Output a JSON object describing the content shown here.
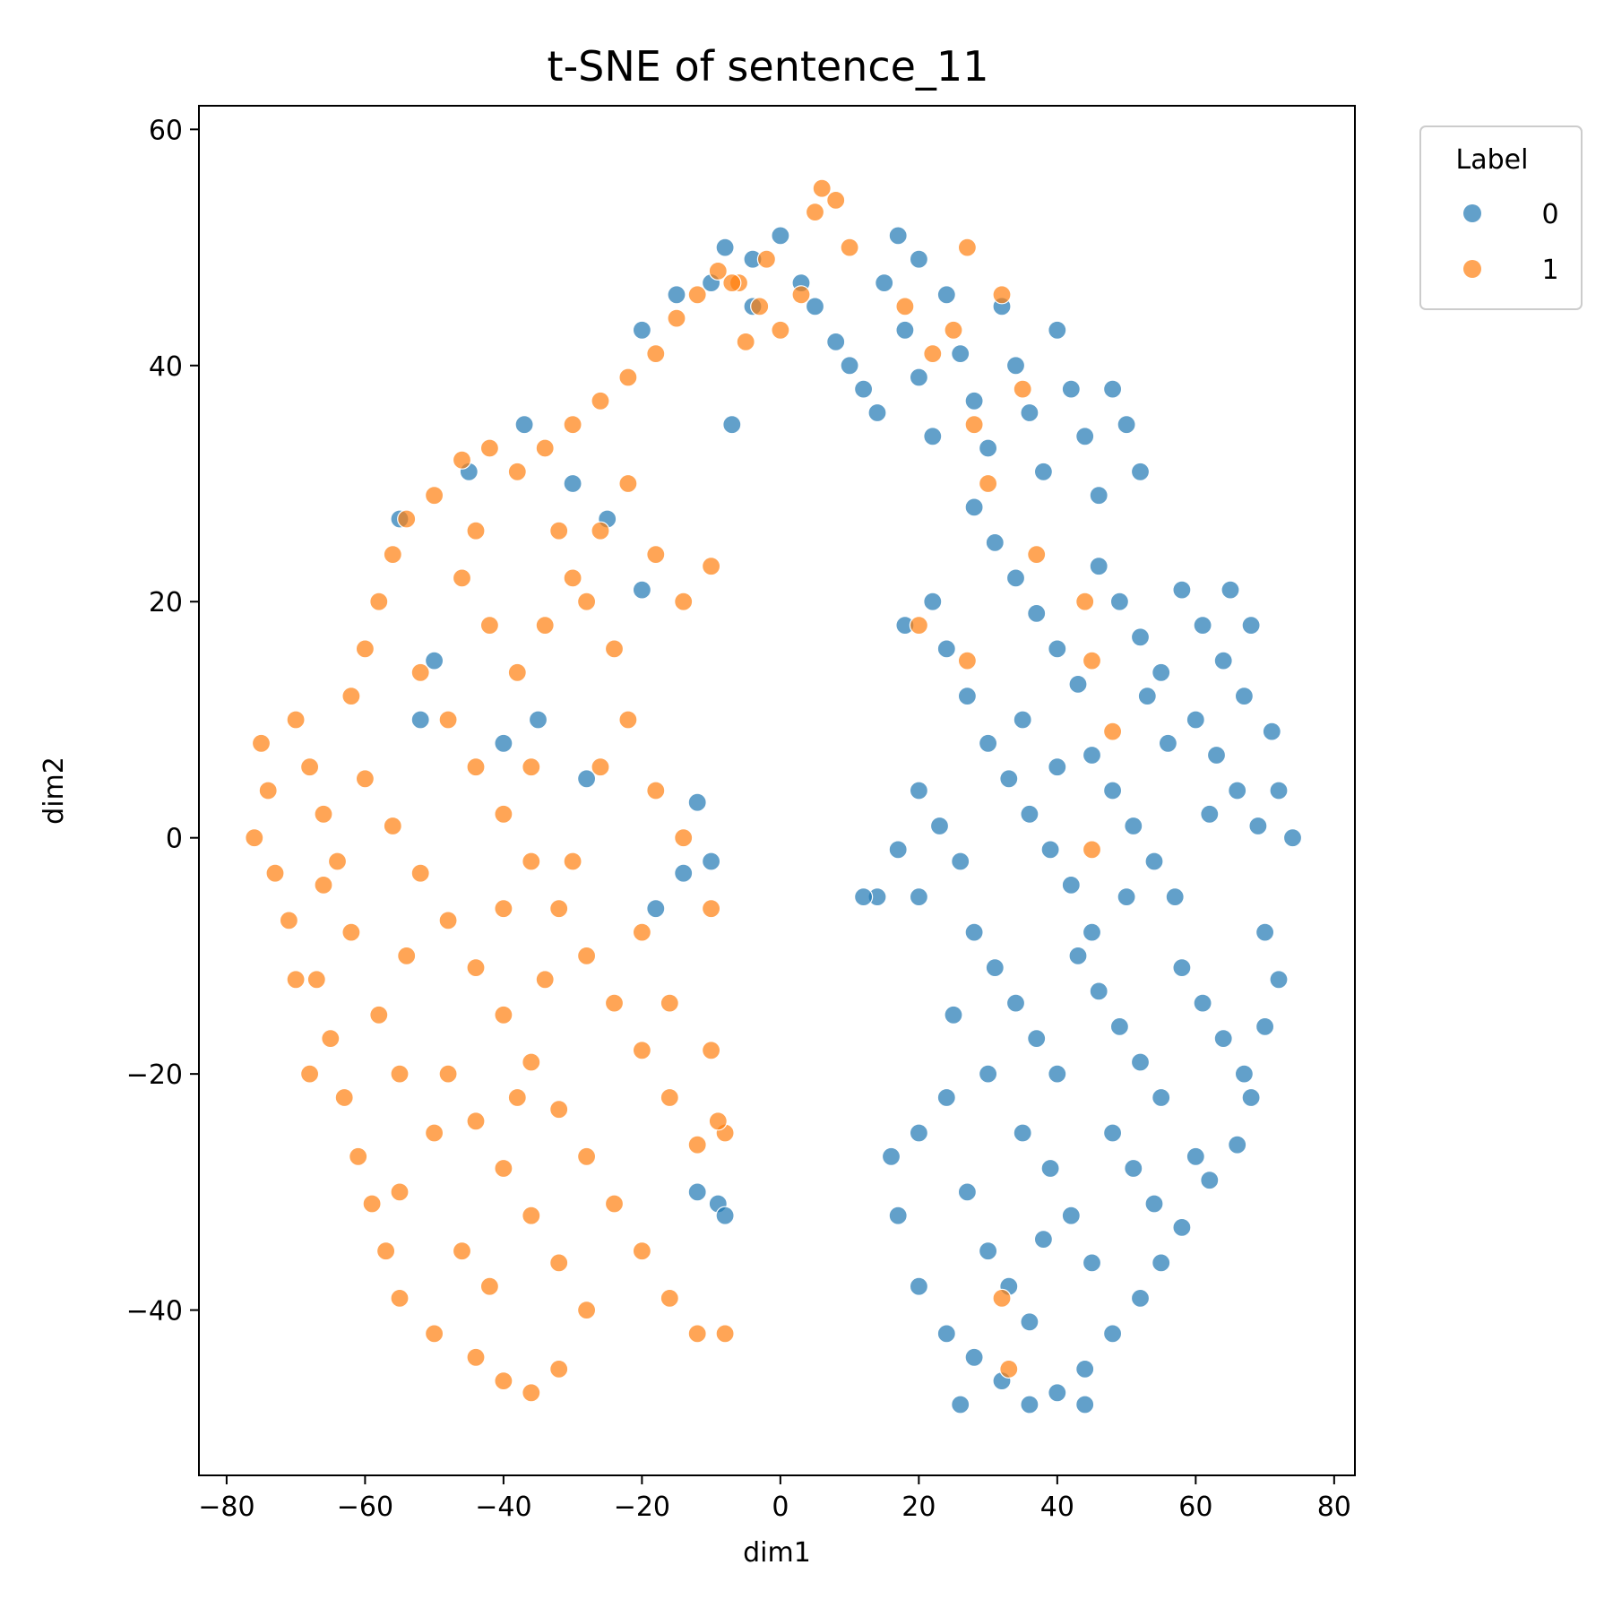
{
  "chart_data": {
    "type": "scatter",
    "title": "t-SNE of sentence_11",
    "xlabel": "dim1",
    "ylabel": "dim2",
    "xlim": [
      -84,
      83
    ],
    "ylim": [
      -54,
      62
    ],
    "xticks": [
      -80,
      -60,
      -40,
      -20,
      0,
      20,
      40,
      60,
      80
    ],
    "yticks": [
      -40,
      -20,
      0,
      20,
      40,
      60
    ],
    "xtick_labels": [
      "−80",
      "−60",
      "−40",
      "−20",
      "0",
      "20",
      "40",
      "60",
      "80"
    ],
    "ytick_labels": [
      "−40",
      "−20",
      "0",
      "20",
      "40",
      "60"
    ],
    "grid": false,
    "legend": {
      "title": "Label",
      "placement": "upper right, outside plot"
    },
    "series": [
      {
        "name": "0",
        "color": "#1f77b4",
        "points": [
          [
            -8,
            50
          ],
          [
            -4,
            49
          ],
          [
            0,
            51
          ],
          [
            3,
            47
          ],
          [
            5,
            45
          ],
          [
            8,
            42
          ],
          [
            10,
            40
          ],
          [
            12,
            38
          ],
          [
            14,
            36
          ],
          [
            15,
            47
          ],
          [
            17,
            51
          ],
          [
            18,
            43
          ],
          [
            20,
            39
          ],
          [
            22,
            34
          ],
          [
            20,
            49
          ],
          [
            24,
            46
          ],
          [
            26,
            41
          ],
          [
            28,
            37
          ],
          [
            30,
            33
          ],
          [
            32,
            45
          ],
          [
            34,
            40
          ],
          [
            36,
            36
          ],
          [
            38,
            31
          ],
          [
            40,
            43
          ],
          [
            42,
            38
          ],
          [
            44,
            34
          ],
          [
            46,
            29
          ],
          [
            48,
            38
          ],
          [
            50,
            35
          ],
          [
            52,
            31
          ],
          [
            28,
            28
          ],
          [
            31,
            25
          ],
          [
            34,
            22
          ],
          [
            37,
            19
          ],
          [
            40,
            16
          ],
          [
            43,
            13
          ],
          [
            46,
            23
          ],
          [
            49,
            20
          ],
          [
            52,
            17
          ],
          [
            55,
            14
          ],
          [
            58,
            21
          ],
          [
            61,
            18
          ],
          [
            64,
            15
          ],
          [
            67,
            12
          ],
          [
            60,
            10
          ],
          [
            63,
            7
          ],
          [
            66,
            4
          ],
          [
            69,
            1
          ],
          [
            72,
            4
          ],
          [
            74,
            0
          ],
          [
            22,
            20
          ],
          [
            24,
            16
          ],
          [
            18,
            18
          ],
          [
            27,
            12
          ],
          [
            30,
            8
          ],
          [
            33,
            5
          ],
          [
            36,
            2
          ],
          [
            39,
            -1
          ],
          [
            42,
            -4
          ],
          [
            45,
            7
          ],
          [
            48,
            4
          ],
          [
            51,
            1
          ],
          [
            54,
            -2
          ],
          [
            57,
            -5
          ],
          [
            20,
            4
          ],
          [
            23,
            1
          ],
          [
            26,
            -2
          ],
          [
            17,
            -1
          ],
          [
            20,
            -5
          ],
          [
            14,
            -5
          ],
          [
            12,
            -5
          ],
          [
            28,
            -8
          ],
          [
            31,
            -11
          ],
          [
            34,
            -14
          ],
          [
            37,
            -17
          ],
          [
            40,
            -20
          ],
          [
            43,
            -10
          ],
          [
            46,
            -13
          ],
          [
            49,
            -16
          ],
          [
            52,
            -19
          ],
          [
            55,
            -22
          ],
          [
            58,
            -11
          ],
          [
            61,
            -14
          ],
          [
            64,
            -17
          ],
          [
            67,
            -20
          ],
          [
            70,
            -8
          ],
          [
            72,
            -12
          ],
          [
            70,
            -16
          ],
          [
            68,
            -22
          ],
          [
            66,
            -26
          ],
          [
            62,
            -29
          ],
          [
            58,
            -33
          ],
          [
            55,
            -36
          ],
          [
            52,
            -39
          ],
          [
            48,
            -42
          ],
          [
            44,
            -45
          ],
          [
            40,
            -47
          ],
          [
            36,
            -48
          ],
          [
            32,
            -46
          ],
          [
            28,
            -44
          ],
          [
            24,
            -42
          ],
          [
            20,
            -38
          ],
          [
            17,
            -32
          ],
          [
            16,
            -27
          ],
          [
            20,
            -25
          ],
          [
            24,
            -22
          ],
          [
            27,
            -30
          ],
          [
            30,
            -35
          ],
          [
            33,
            -38
          ],
          [
            36,
            -41
          ],
          [
            39,
            -28
          ],
          [
            42,
            -32
          ],
          [
            45,
            -36
          ],
          [
            48,
            -25
          ],
          [
            51,
            -28
          ],
          [
            54,
            -31
          ],
          [
            26,
            -48
          ],
          [
            44,
            -48
          ],
          [
            60,
            -27
          ],
          [
            65,
            21
          ],
          [
            68,
            18
          ],
          [
            71,
            9
          ],
          [
            62,
            2
          ],
          [
            35,
            -25
          ],
          [
            38,
            -34
          ],
          [
            30,
            -20
          ],
          [
            25,
            -15
          ],
          [
            45,
            -8
          ],
          [
            50,
            -5
          ],
          [
            56,
            8
          ],
          [
            53,
            12
          ],
          [
            40,
            6
          ],
          [
            35,
            10
          ],
          [
            -12,
            3
          ],
          [
            -10,
            -2
          ],
          [
            -14,
            -3
          ],
          [
            -18,
            -6
          ],
          [
            -20,
            21
          ],
          [
            -25,
            27
          ],
          [
            -30,
            30
          ],
          [
            -37,
            35
          ],
          [
            -45,
            31
          ],
          [
            -55,
            27
          ],
          [
            -50,
            15
          ],
          [
            -52,
            10
          ],
          [
            -40,
            8
          ],
          [
            -35,
            10
          ],
          [
            -12,
            -30
          ],
          [
            -9,
            -31
          ],
          [
            -8,
            -32
          ],
          [
            -28,
            5
          ],
          [
            -7,
            35
          ],
          [
            -4,
            45
          ],
          [
            -10,
            47
          ],
          [
            -15,
            46
          ],
          [
            -20,
            43
          ]
        ]
      },
      {
        "name": "1",
        "color": "#ff7f0e",
        "points": [
          [
            -75,
            8
          ],
          [
            -74,
            4
          ],
          [
            -76,
            0
          ],
          [
            -73,
            -3
          ],
          [
            -71,
            -7
          ],
          [
            -70,
            10
          ],
          [
            -68,
            6
          ],
          [
            -66,
            2
          ],
          [
            -64,
            -2
          ],
          [
            -67,
            -12
          ],
          [
            -65,
            -17
          ],
          [
            -63,
            -22
          ],
          [
            -61,
            -27
          ],
          [
            -59,
            -31
          ],
          [
            -57,
            -35
          ],
          [
            -55,
            -39
          ],
          [
            -62,
            12
          ],
          [
            -60,
            16
          ],
          [
            -58,
            20
          ],
          [
            -56,
            24
          ],
          [
            -54,
            27
          ],
          [
            -50,
            29
          ],
          [
            -46,
            32
          ],
          [
            -42,
            33
          ],
          [
            -38,
            31
          ],
          [
            -34,
            33
          ],
          [
            -30,
            35
          ],
          [
            -26,
            37
          ],
          [
            -22,
            39
          ],
          [
            -18,
            41
          ],
          [
            -15,
            44
          ],
          [
            -12,
            46
          ],
          [
            -9,
            48
          ],
          [
            -6,
            47
          ],
          [
            -3,
            45
          ],
          [
            0,
            43
          ],
          [
            -60,
            5
          ],
          [
            -56,
            1
          ],
          [
            -52,
            -3
          ],
          [
            -48,
            -7
          ],
          [
            -44,
            -11
          ],
          [
            -40,
            -15
          ],
          [
            -36,
            -19
          ],
          [
            -32,
            -23
          ],
          [
            -28,
            -27
          ],
          [
            -24,
            -31
          ],
          [
            -20,
            -35
          ],
          [
            -16,
            -39
          ],
          [
            -12,
            -42
          ],
          [
            -8,
            -42
          ],
          [
            -52,
            14
          ],
          [
            -48,
            10
          ],
          [
            -44,
            6
          ],
          [
            -40,
            2
          ],
          [
            -36,
            -2
          ],
          [
            -32,
            -6
          ],
          [
            -28,
            -10
          ],
          [
            -24,
            -14
          ],
          [
            -20,
            -18
          ],
          [
            -16,
            -22
          ],
          [
            -12,
            -26
          ],
          [
            -8,
            -25
          ],
          [
            -46,
            22
          ],
          [
            -42,
            18
          ],
          [
            -38,
            14
          ],
          [
            -34,
            18
          ],
          [
            -30,
            22
          ],
          [
            -26,
            26
          ],
          [
            -22,
            30
          ],
          [
            -18,
            24
          ],
          [
            -14,
            20
          ],
          [
            -10,
            23
          ],
          [
            -48,
            -20
          ],
          [
            -44,
            -24
          ],
          [
            -40,
            -28
          ],
          [
            -36,
            -32
          ],
          [
            -32,
            -36
          ],
          [
            -28,
            -40
          ],
          [
            -44,
            -44
          ],
          [
            -40,
            -46
          ],
          [
            -36,
            -47
          ],
          [
            -32,
            -45
          ],
          [
            -50,
            -42
          ],
          [
            -55,
            -30
          ],
          [
            -58,
            -15
          ],
          [
            -62,
            -8
          ],
          [
            -66,
            -4
          ],
          [
            -70,
            -12
          ],
          [
            -68,
            -20
          ],
          [
            -54,
            -10
          ],
          [
            -50,
            -25
          ],
          [
            -46,
            -35
          ],
          [
            -42,
            -38
          ],
          [
            -38,
            -22
          ],
          [
            -34,
            -12
          ],
          [
            -30,
            -2
          ],
          [
            -26,
            6
          ],
          [
            -22,
            10
          ],
          [
            -18,
            4
          ],
          [
            -14,
            0
          ],
          [
            -10,
            -6
          ],
          [
            -20,
            -8
          ],
          [
            -16,
            -14
          ],
          [
            -24,
            16
          ],
          [
            -28,
            20
          ],
          [
            -32,
            26
          ],
          [
            -36,
            6
          ],
          [
            -40,
            -6
          ],
          [
            -55,
            -20
          ],
          [
            -44,
            26
          ],
          [
            -10,
            -18
          ],
          [
            -9,
            -24
          ],
          [
            6,
            55
          ],
          [
            8,
            54
          ],
          [
            5,
            53
          ],
          [
            10,
            50
          ],
          [
            -2,
            49
          ],
          [
            3,
            46
          ],
          [
            -7,
            47
          ],
          [
            -5,
            42
          ],
          [
            18,
            45
          ],
          [
            22,
            41
          ],
          [
            25,
            43
          ],
          [
            27,
            50
          ],
          [
            32,
            46
          ],
          [
            28,
            35
          ],
          [
            30,
            30
          ],
          [
            35,
            38
          ],
          [
            37,
            24
          ],
          [
            44,
            20
          ],
          [
            48,
            9
          ],
          [
            45,
            -1
          ],
          [
            32,
            -39
          ],
          [
            33,
            -45
          ],
          [
            20,
            18
          ],
          [
            27,
            15
          ],
          [
            45,
            15
          ]
        ]
      }
    ]
  }
}
